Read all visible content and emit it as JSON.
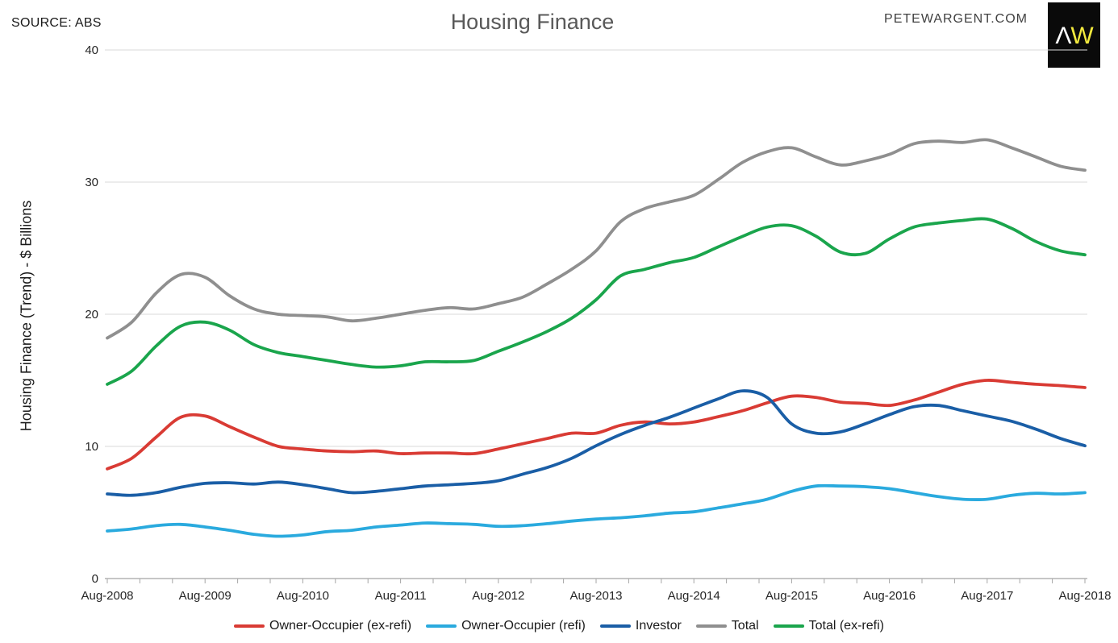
{
  "header": {
    "source": "SOURCE: ABS",
    "title": "Housing Finance",
    "website": "PETEWARGENT.COM",
    "logo": {
      "part1": "Λ",
      "part2": "W"
    }
  },
  "colors": {
    "grid": "#d9d9d9",
    "axis": "#b3b3b3",
    "tick": "#a6a6a6",
    "tick_label": "#262626",
    "title": "#595959"
  },
  "chart_data": {
    "type": "line",
    "title": "Housing Finance",
    "xlabel": "",
    "ylabel": "Housing Finance (Trend) - $ Billions",
    "ylim": [
      0,
      40
    ],
    "y_ticks": [
      0,
      10,
      20,
      30,
      40
    ],
    "grid": "horizontal",
    "legend_position": "bottom",
    "x_tick_labels": [
      "Aug-2008",
      "Aug-2009",
      "Aug-2010",
      "Aug-2011",
      "Aug-2012",
      "Aug-2013",
      "Aug-2014",
      "Aug-2015",
      "Aug-2016",
      "Aug-2017",
      "Aug-2018"
    ],
    "x": [
      "Aug-2008",
      "Nov-2008",
      "Feb-2009",
      "May-2009",
      "Aug-2009",
      "Nov-2009",
      "Feb-2010",
      "May-2010",
      "Aug-2010",
      "Nov-2010",
      "Feb-2011",
      "May-2011",
      "Aug-2011",
      "Nov-2011",
      "Feb-2012",
      "May-2012",
      "Aug-2012",
      "Nov-2012",
      "Feb-2013",
      "May-2013",
      "Aug-2013",
      "Nov-2013",
      "Feb-2014",
      "May-2014",
      "Aug-2014",
      "Nov-2014",
      "Feb-2015",
      "May-2015",
      "Aug-2015",
      "Nov-2015",
      "Feb-2016",
      "May-2016",
      "Aug-2016",
      "Nov-2016",
      "Feb-2017",
      "May-2017",
      "Aug-2017",
      "Nov-2017",
      "Feb-2018",
      "May-2018",
      "Aug-2018"
    ],
    "series": [
      {
        "name": "Owner-Occupier (ex-refi)",
        "color": "#d93b34",
        "values": [
          8.3,
          9.1,
          10.7,
          12.2,
          12.3,
          11.5,
          10.7,
          10.0,
          9.8,
          9.65,
          9.6,
          9.65,
          9.45,
          9.5,
          9.5,
          9.45,
          9.8,
          10.2,
          10.6,
          11.0,
          11.0,
          11.6,
          11.85,
          11.7,
          11.85,
          12.25,
          12.7,
          13.3,
          13.8,
          13.7,
          13.35,
          13.25,
          13.1,
          13.5,
          14.1,
          14.7,
          15.0,
          14.85,
          14.7,
          14.6,
          14.45
        ]
      },
      {
        "name": "Owner-Occupier (refi)",
        "color": "#2aaade",
        "values": [
          3.6,
          3.75,
          4.0,
          4.1,
          3.9,
          3.65,
          3.35,
          3.2,
          3.3,
          3.55,
          3.65,
          3.9,
          4.05,
          4.2,
          4.15,
          4.1,
          3.95,
          4.0,
          4.15,
          4.35,
          4.5,
          4.6,
          4.75,
          4.95,
          5.05,
          5.35,
          5.65,
          6.0,
          6.6,
          7.0,
          7.0,
          6.95,
          6.8,
          6.5,
          6.2,
          6.0,
          6.0,
          6.3,
          6.45,
          6.4,
          6.5
        ]
      },
      {
        "name": "Investor",
        "color": "#1a5ea6",
        "values": [
          6.4,
          6.3,
          6.5,
          6.9,
          7.2,
          7.25,
          7.15,
          7.3,
          7.1,
          6.8,
          6.5,
          6.6,
          6.8,
          7.0,
          7.1,
          7.2,
          7.4,
          7.9,
          8.4,
          9.1,
          10.05,
          10.9,
          11.6,
          12.2,
          12.9,
          13.6,
          14.2,
          13.7,
          11.7,
          11.0,
          11.1,
          11.7,
          12.4,
          13.0,
          13.1,
          12.7,
          12.3,
          11.9,
          11.3,
          10.6,
          10.05
        ]
      },
      {
        "name": "Total",
        "color": "#8f8f8f",
        "values": [
          18.2,
          19.4,
          21.6,
          23.0,
          22.8,
          21.4,
          20.4,
          20.0,
          19.9,
          19.8,
          19.5,
          19.7,
          20.0,
          20.3,
          20.5,
          20.4,
          20.8,
          21.3,
          22.3,
          23.4,
          24.8,
          27.0,
          28.0,
          28.5,
          29.0,
          30.2,
          31.5,
          32.3,
          32.6,
          31.9,
          31.3,
          31.6,
          32.1,
          32.9,
          33.1,
          33.0,
          33.2,
          32.6,
          31.9,
          31.2,
          30.9
        ]
      },
      {
        "name": "Total (ex-refi)",
        "color": "#1aa54c",
        "values": [
          14.7,
          15.7,
          17.6,
          19.1,
          19.4,
          18.8,
          17.7,
          17.1,
          16.8,
          16.5,
          16.2,
          16.0,
          16.1,
          16.4,
          16.4,
          16.5,
          17.2,
          17.9,
          18.7,
          19.7,
          21.1,
          22.9,
          23.4,
          23.9,
          24.3,
          25.1,
          25.9,
          26.6,
          26.7,
          25.9,
          24.7,
          24.6,
          25.7,
          26.6,
          26.9,
          27.1,
          27.2,
          26.5,
          25.5,
          24.8,
          24.5
        ]
      }
    ]
  }
}
